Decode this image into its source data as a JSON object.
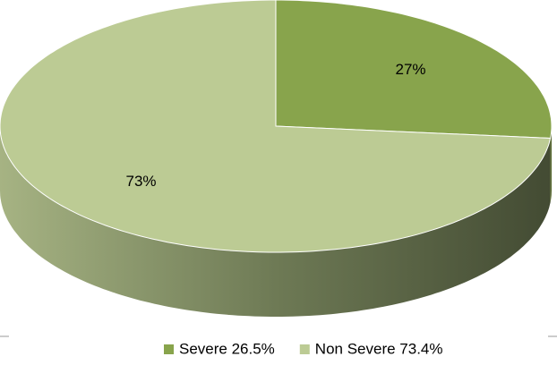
{
  "chart_data": {
    "type": "pie",
    "categories": [
      "Severe 26.5%",
      "Non Severe 73.4%"
    ],
    "values": [
      26.5,
      73.4
    ],
    "value_labels": [
      "27%",
      "73%"
    ],
    "colors": [
      "#88a44c",
      "#bccb94"
    ],
    "legend": "bottom"
  }
}
